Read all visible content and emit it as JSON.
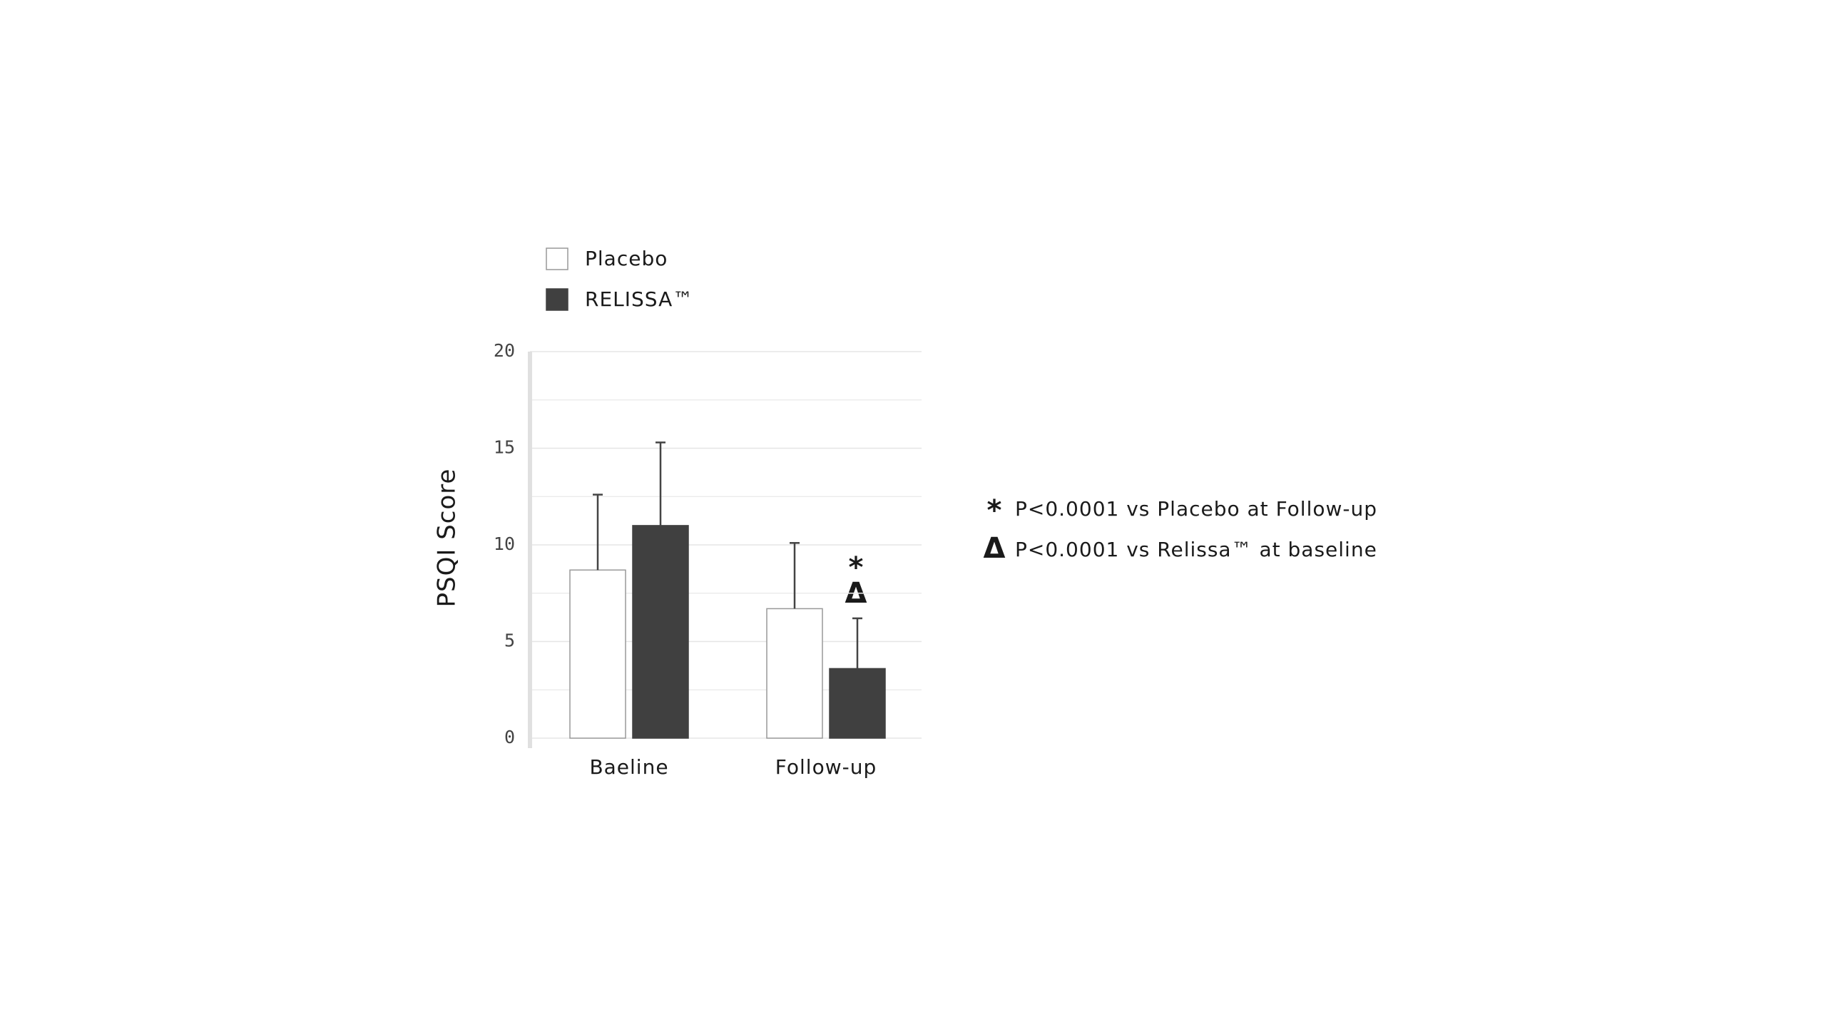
{
  "chart_data": {
    "type": "bar",
    "y_label": "PSQI Score",
    "categories": [
      "Baeline",
      "Follow-up"
    ],
    "series": [
      {
        "name": "Placebo",
        "color": "#ffffff",
        "stroke": "#999999",
        "values": [
          8.7,
          6.7
        ],
        "errors": [
          3.9,
          3.4
        ]
      },
      {
        "name": "RELISSA™",
        "color": "#404040",
        "stroke": "#404040",
        "values": [
          11.0,
          3.6
        ],
        "errors": [
          4.3,
          2.6
        ]
      }
    ],
    "ylim": [
      0,
      20
    ],
    "yticks": [
      0,
      5,
      10,
      15,
      20
    ],
    "grid": true,
    "bar_annotations": [
      "*",
      "Δ"
    ],
    "footnotes": [
      {
        "symbol": "*",
        "text": "P<0.0001 vs Placebo at Follow-up"
      },
      {
        "symbol": "Δ",
        "text": "P<0.0001 vs Relissa™ at baseline"
      }
    ]
  }
}
